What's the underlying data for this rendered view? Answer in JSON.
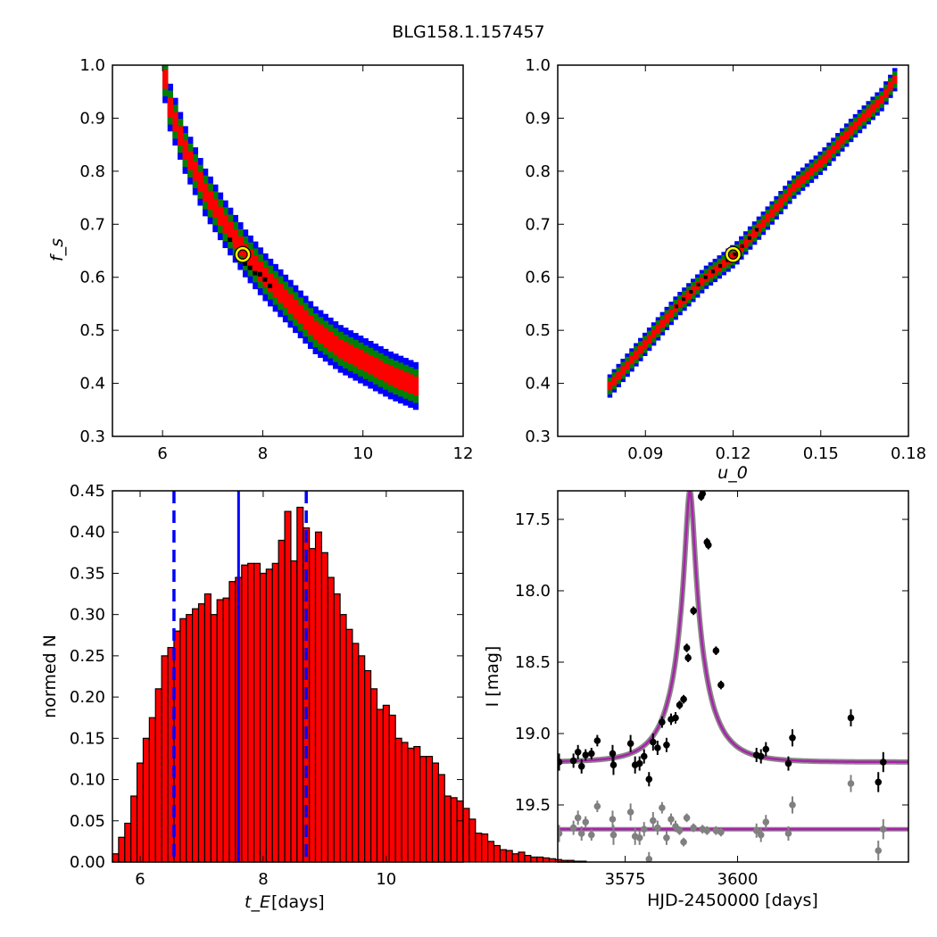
{
  "figure": {
    "title": "BLG158.1.157457"
  },
  "chart_data": [
    {
      "id": "fs_vs_tE",
      "type": "heatmap",
      "xlim": [
        5,
        12
      ],
      "ylim": [
        0.3,
        1.0
      ],
      "x_ticks": [
        "6",
        "8",
        "10",
        "12"
      ],
      "y_ticks": [
        "0.3",
        "0.4",
        "0.5",
        "0.6",
        "0.7",
        "0.8",
        "0.9",
        "1.0"
      ],
      "xlabel": "",
      "ylabel": "f_s",
      "band": [
        [
          5.95,
          1.0
        ],
        [
          6.1,
          0.92
        ],
        [
          6.4,
          0.84
        ],
        [
          6.8,
          0.76
        ],
        [
          7.2,
          0.7
        ],
        [
          7.6,
          0.645
        ],
        [
          8.0,
          0.6
        ],
        [
          8.5,
          0.55
        ],
        [
          9.0,
          0.5
        ],
        [
          9.5,
          0.465
        ],
        [
          10.0,
          0.44
        ],
        [
          10.5,
          0.415
        ],
        [
          11.0,
          0.395
        ]
      ],
      "best_fit": {
        "x": 7.6,
        "y": 0.643
      },
      "colors": {
        "outer": "#0000ff",
        "middle": "#008000",
        "inner": "#ff0000",
        "core": "#000000",
        "best": "#ffff00"
      }
    },
    {
      "id": "fs_vs_u0",
      "type": "heatmap",
      "xlim": [
        0.06,
        0.18
      ],
      "ylim": [
        0.3,
        1.0
      ],
      "x_ticks": [
        "0.09",
        "0.12",
        "0.15",
        "0.18"
      ],
      "y_ticks": [
        "0.3",
        "0.4",
        "0.5",
        "0.6",
        "0.7",
        "0.8",
        "0.9",
        "1.0"
      ],
      "xlabel": "u_0",
      "ylabel": "",
      "band": [
        [
          0.077,
          0.395
        ],
        [
          0.09,
          0.48
        ],
        [
          0.1,
          0.545
        ],
        [
          0.11,
          0.6
        ],
        [
          0.12,
          0.643
        ],
        [
          0.13,
          0.705
        ],
        [
          0.14,
          0.77
        ],
        [
          0.15,
          0.82
        ],
        [
          0.16,
          0.88
        ],
        [
          0.17,
          0.935
        ],
        [
          0.176,
          0.985
        ]
      ],
      "best_fit": {
        "x": 0.12,
        "y": 0.643
      }
    },
    {
      "id": "tE_histogram",
      "type": "bar",
      "xlim": [
        5.55,
        11.25
      ],
      "ylim": [
        0,
        0.45
      ],
      "x_ticks": [
        "6",
        "8",
        "10"
      ],
      "y_ticks": [
        "0.00",
        "0.05",
        "0.10",
        "0.15",
        "0.20",
        "0.25",
        "0.30",
        "0.35",
        "0.40",
        "0.45"
      ],
      "xlabel_main": "t_E",
      "xlabel_unit": "[days]",
      "ylabel": "normed N",
      "bin_start": 5.55,
      "bin_width": 0.1,
      "values": [
        0.01,
        0.03,
        0.047,
        0.08,
        0.12,
        0.15,
        0.175,
        0.21,
        0.25,
        0.26,
        0.28,
        0.295,
        0.3,
        0.307,
        0.313,
        0.325,
        0.3,
        0.318,
        0.32,
        0.34,
        0.345,
        0.36,
        0.362,
        0.362,
        0.35,
        0.355,
        0.362,
        0.39,
        0.425,
        0.365,
        0.43,
        0.405,
        0.38,
        0.4,
        0.375,
        0.345,
        0.325,
        0.3,
        0.282,
        0.265,
        0.25,
        0.232,
        0.21,
        0.185,
        0.19,
        0.178,
        0.15,
        0.145,
        0.138,
        0.14,
        0.128,
        0.128,
        0.12,
        0.106,
        0.08,
        0.078,
        0.074,
        0.065,
        0.052,
        0.035,
        0.034,
        0.025,
        0.02,
        0.015,
        0.014,
        0.01,
        0.012,
        0.008,
        0.006,
        0.006,
        0.005,
        0.004,
        0.003,
        0.002,
        0.002,
        0.001,
        0.001
      ],
      "vlines": {
        "median": 7.6,
        "lower": 6.55,
        "upper": 8.7
      },
      "colors": {
        "bar": "#ff0000",
        "edge": "#000000",
        "vline": "#0000ff"
      }
    },
    {
      "id": "light_curve",
      "type": "scatter",
      "xlim": [
        3560,
        3638
      ],
      "ylim": [
        19.9,
        17.3
      ],
      "x_ticks": [
        "3575",
        "3600"
      ],
      "y_ticks": [
        "17.5",
        "18.0",
        "18.5",
        "19.0",
        "19.5"
      ],
      "xlabel": "HJD-2450000 [days]",
      "ylabel": "I [mag]",
      "model": {
        "t0": 3589.4,
        "u0": 0.12,
        "tE": 7.6,
        "fs": 0.643,
        "base": 19.2,
        "color": "#aa22aa"
      },
      "observed": [
        [
          3560.3,
          19.2,
          0.06
        ],
        [
          3563.5,
          19.19,
          0.05
        ],
        [
          3564.5,
          19.13,
          0.05
        ],
        [
          3565.3,
          19.23,
          0.05
        ],
        [
          3566.2,
          19.15,
          0.04
        ],
        [
          3567.5,
          19.14,
          0.04
        ],
        [
          3568.8,
          19.05,
          0.04
        ],
        [
          3572.2,
          19.14,
          0.06
        ],
        [
          3572.4,
          19.22,
          0.07
        ],
        [
          3576.2,
          19.07,
          0.06
        ],
        [
          3577.2,
          19.22,
          0.06
        ],
        [
          3578.2,
          19.21,
          0.05
        ],
        [
          3579.2,
          19.16,
          0.05
        ],
        [
          3580.3,
          19.32,
          0.05
        ],
        [
          3581.2,
          19.06,
          0.06
        ],
        [
          3582.2,
          19.1,
          0.05
        ],
        [
          3583.2,
          18.92,
          0.04
        ],
        [
          3584.2,
          19.08,
          0.05
        ],
        [
          3585.2,
          18.9,
          0.04
        ],
        [
          3586.2,
          18.89,
          0.04
        ],
        [
          3587.1,
          18.8,
          0.03
        ],
        [
          3588.0,
          18.76,
          0.03
        ],
        [
          3588.7,
          18.4,
          0.03
        ],
        [
          3589.0,
          18.47,
          0.03
        ],
        [
          3590.2,
          18.14,
          0.03
        ],
        [
          3591.9,
          17.34,
          0.03
        ],
        [
          3592.2,
          17.32,
          0.03
        ],
        [
          3593.2,
          17.66,
          0.03
        ],
        [
          3593.5,
          17.68,
          0.03
        ],
        [
          3595.2,
          18.42,
          0.03
        ],
        [
          3596.3,
          18.66,
          0.03
        ],
        [
          3604.2,
          19.15,
          0.05
        ],
        [
          3605.2,
          19.16,
          0.05
        ],
        [
          3606.3,
          19.11,
          0.05
        ],
        [
          3611.3,
          19.21,
          0.05
        ],
        [
          3612.2,
          19.03,
          0.06
        ],
        [
          3625.2,
          18.89,
          0.06
        ],
        [
          3631.3,
          19.34,
          0.07
        ],
        [
          3632.4,
          19.2,
          0.07
        ]
      ],
      "residuals": [
        [
          3560.3,
          19.7,
          0.06
        ],
        [
          3563.5,
          19.66,
          0.05
        ],
        [
          3564.5,
          19.59,
          0.05
        ],
        [
          3565.3,
          19.7,
          0.05
        ],
        [
          3566.2,
          19.62,
          0.04
        ],
        [
          3567.5,
          19.71,
          0.04
        ],
        [
          3568.8,
          19.51,
          0.04
        ],
        [
          3572.2,
          19.6,
          0.06
        ],
        [
          3572.4,
          19.71,
          0.07
        ],
        [
          3576.2,
          19.55,
          0.06
        ],
        [
          3577.2,
          19.72,
          0.06
        ],
        [
          3578.2,
          19.73,
          0.05
        ],
        [
          3579.2,
          19.67,
          0.05
        ],
        [
          3580.3,
          19.88,
          0.05
        ],
        [
          3581.2,
          19.61,
          0.06
        ],
        [
          3582.2,
          19.66,
          0.05
        ],
        [
          3583.2,
          19.52,
          0.04
        ],
        [
          3584.2,
          19.73,
          0.05
        ],
        [
          3585.2,
          19.6,
          0.04
        ],
        [
          3586.2,
          19.65,
          0.04
        ],
        [
          3587.1,
          19.68,
          0.03
        ],
        [
          3588.0,
          19.76,
          0.03
        ],
        [
          3588.7,
          19.59,
          0.03
        ],
        [
          3590.2,
          19.66,
          0.03
        ],
        [
          3592.2,
          19.67,
          0.03
        ],
        [
          3593.2,
          19.68,
          0.03
        ],
        [
          3595.2,
          19.68,
          0.03
        ],
        [
          3596.3,
          19.69,
          0.03
        ],
        [
          3604.2,
          19.68,
          0.05
        ],
        [
          3605.2,
          19.71,
          0.05
        ],
        [
          3606.3,
          19.62,
          0.05
        ],
        [
          3611.3,
          19.7,
          0.05
        ],
        [
          3612.2,
          19.5,
          0.06
        ],
        [
          3625.2,
          19.35,
          0.06
        ],
        [
          3631.3,
          19.82,
          0.07
        ],
        [
          3632.4,
          19.67,
          0.07
        ]
      ],
      "residual_baseline": 19.67,
      "colors": {
        "observed": "#000000",
        "residual": "#808080"
      }
    }
  ]
}
